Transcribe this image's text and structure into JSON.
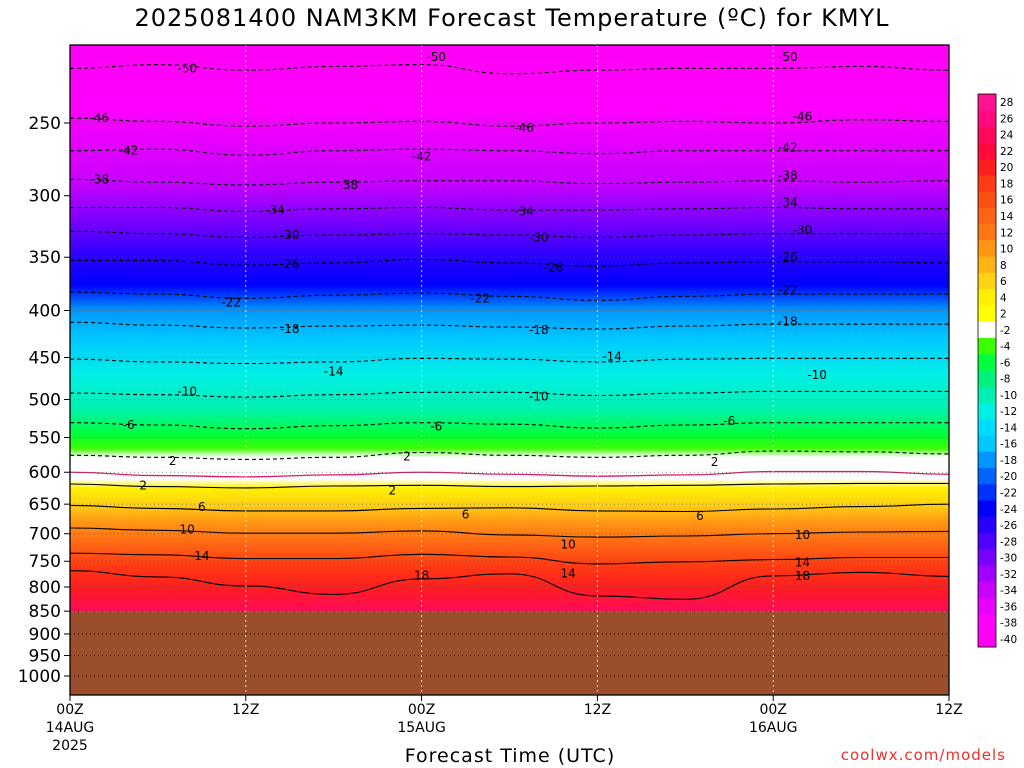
{
  "title": "2025081400 NAM3KM Forecast Temperature (ºC) for KMYL",
  "xlabel": "Forecast Time (UTC)",
  "credit": "coolwx.com/models",
  "colors": {
    "terrain": "#9a4e2b",
    "freezing_contour": "#e0186e",
    "credit": "#e8322e"
  },
  "chart_data": {
    "type": "heatmap",
    "title": "2025081400 NAM3KM Forecast Temperature (ºC) for KMYL",
    "xlabel": "Forecast Time (UTC)",
    "ylabel": "",
    "y_scale": "log pressure (hPa), inverted",
    "ylim": [
      1050,
      200
    ],
    "xlim": [
      0,
      60
    ],
    "grid": true,
    "surface_pressure": 850,
    "y_ticks": [
      250,
      300,
      350,
      400,
      450,
      500,
      550,
      600,
      650,
      700,
      750,
      800,
      850,
      900,
      950,
      1000
    ],
    "x_ticks": [
      {
        "hour": 0,
        "label": "00Z",
        "sub1": "14AUG",
        "sub2": "2025"
      },
      {
        "hour": 12,
        "label": "12Z",
        "sub1": "",
        "sub2": ""
      },
      {
        "hour": 24,
        "label": "00Z",
        "sub1": "15AUG",
        "sub2": ""
      },
      {
        "hour": 36,
        "label": "12Z",
        "sub1": "",
        "sub2": ""
      },
      {
        "hour": 48,
        "label": "00Z",
        "sub1": "16AUG",
        "sub2": ""
      },
      {
        "hour": 60,
        "label": "12Z",
        "sub1": "",
        "sub2": ""
      }
    ],
    "colorbar_levels": [
      28,
      26,
      24,
      22,
      20,
      18,
      16,
      14,
      12,
      10,
      8,
      6,
      4,
      2,
      -2,
      -4,
      -6,
      -8,
      -10,
      -12,
      -14,
      -16,
      -18,
      -20,
      -22,
      -24,
      -26,
      -28,
      -30,
      -32,
      -34,
      -36,
      -38,
      -40
    ],
    "colorbar_colors": [
      "#ff1493",
      "#ff0a80",
      "#ff0a5a",
      "#ff0a3c",
      "#ff1e1e",
      "#ff3a14",
      "#ff5014",
      "#ff6414",
      "#ff7814",
      "#ff9614",
      "#ffb414",
      "#ffd214",
      "#fff000",
      "#ffff00",
      "#ffffff",
      "#3cff00",
      "#00ff3c",
      "#00f07a",
      "#00f0b4",
      "#00f0e6",
      "#00dcff",
      "#00c8ff",
      "#0096ff",
      "#0064ff",
      "#0032ff",
      "#0000ff",
      "#2800ff",
      "#5000ff",
      "#7800ff",
      "#a000ff",
      "#c800ff",
      "#e600ff",
      "#ff00ff",
      "#ff00f5"
    ],
    "series": [
      {
        "name": "-50",
        "pressure": [
          218,
          216,
          219,
          217,
          216,
          221,
          219,
          218,
          218,
          217,
          219
        ]
      },
      {
        "name": "-46",
        "pressure": [
          247,
          249,
          252,
          250,
          249,
          252,
          250,
          249,
          250,
          248,
          249
        ]
      },
      {
        "name": "-42",
        "pressure": [
          268,
          267,
          271,
          268,
          267,
          268,
          270,
          268,
          268,
          268,
          268
        ]
      },
      {
        "name": "-38",
        "pressure": [
          288,
          290,
          292,
          290,
          289,
          289,
          291,
          290,
          289,
          290,
          289
        ]
      },
      {
        "name": "-34",
        "pressure": [
          309,
          309,
          312,
          310,
          309,
          311,
          311,
          310,
          309,
          310,
          310
        ]
      },
      {
        "name": "-30",
        "pressure": [
          328,
          330,
          333,
          331,
          330,
          331,
          333,
          331,
          330,
          330,
          330
        ]
      },
      {
        "name": "-26",
        "pressure": [
          353,
          353,
          357,
          355,
          352,
          355,
          358,
          355,
          354,
          354,
          355
        ]
      },
      {
        "name": "-22",
        "pressure": [
          382,
          384,
          388,
          385,
          383,
          386,
          390,
          386,
          384,
          384,
          384
        ]
      },
      {
        "name": "-18",
        "pressure": [
          412,
          415,
          418,
          416,
          415,
          417,
          419,
          416,
          414,
          414,
          414
        ]
      },
      {
        "name": "-14",
        "pressure": [
          452,
          455,
          457,
          455,
          451,
          452,
          455,
          452,
          451,
          451,
          451
        ]
      },
      {
        "name": "-10",
        "pressure": [
          492,
          494,
          497,
          494,
          491,
          491,
          495,
          492,
          490,
          490,
          490
        ]
      },
      {
        "name": "-6",
        "pressure": [
          530,
          533,
          538,
          534,
          530,
          532,
          537,
          533,
          530,
          530,
          530
        ]
      },
      {
        "name": "-2",
        "pressure": [
          575,
          578,
          581,
          578,
          571,
          575,
          578,
          575,
          569,
          570,
          573
        ]
      },
      {
        "name": "2",
        "pressure": [
          618,
          622,
          624,
          621,
          620,
          622,
          621,
          620,
          618,
          617,
          617
        ]
      },
      {
        "name": "6",
        "pressure": [
          652,
          657,
          661,
          661,
          657,
          656,
          661,
          662,
          658,
          654,
          650
        ]
      },
      {
        "name": "10",
        "pressure": [
          690,
          694,
          699,
          699,
          695,
          702,
          706,
          704,
          700,
          697,
          696
        ]
      },
      {
        "name": "14",
        "pressure": [
          735,
          738,
          745,
          745,
          737,
          742,
          755,
          751,
          747,
          743,
          743
        ]
      },
      {
        "name": "18",
        "pressure": [
          768,
          780,
          798,
          815,
          784,
          774,
          818,
          825,
          778,
          771,
          779
        ]
      }
    ],
    "contour_labels": [
      {
        "value": "-50",
        "hour": 8,
        "pressure": 218
      },
      {
        "value": "-50",
        "hour": 25,
        "pressure": 212
      },
      {
        "value": "-50",
        "hour": 49,
        "pressure": 212
      },
      {
        "value": "-46",
        "hour": 2,
        "pressure": 247
      },
      {
        "value": "-46",
        "hour": 31,
        "pressure": 253
      },
      {
        "value": "-46",
        "hour": 50,
        "pressure": 246
      },
      {
        "value": "-42",
        "hour": 4,
        "pressure": 268
      },
      {
        "value": "-42",
        "hour": 24,
        "pressure": 272
      },
      {
        "value": "-42",
        "hour": 49,
        "pressure": 266
      },
      {
        "value": "-38",
        "hour": 2,
        "pressure": 288
      },
      {
        "value": "-38",
        "hour": 19,
        "pressure": 292
      },
      {
        "value": "-38",
        "hour": 49,
        "pressure": 285
      },
      {
        "value": "-34",
        "hour": 14,
        "pressure": 311
      },
      {
        "value": "-34",
        "hour": 31,
        "pressure": 312
      },
      {
        "value": "-34",
        "hour": 49,
        "pressure": 305
      },
      {
        "value": "-30",
        "hour": 15,
        "pressure": 331
      },
      {
        "value": "-30",
        "hour": 32,
        "pressure": 333
      },
      {
        "value": "-30",
        "hour": 50,
        "pressure": 327
      },
      {
        "value": "-26",
        "hour": 15,
        "pressure": 356
      },
      {
        "value": "-26",
        "hour": 33,
        "pressure": 359
      },
      {
        "value": "-26",
        "hour": 49,
        "pressure": 350
      },
      {
        "value": "-22",
        "hour": 11,
        "pressure": 392
      },
      {
        "value": "-22",
        "hour": 28,
        "pressure": 388
      },
      {
        "value": "-22",
        "hour": 49,
        "pressure": 380
      },
      {
        "value": "-18",
        "hour": 15,
        "pressure": 419
      },
      {
        "value": "-18",
        "hour": 32,
        "pressure": 420
      },
      {
        "value": "-18",
        "hour": 49,
        "pressure": 411
      },
      {
        "value": "-14",
        "hour": 18,
        "pressure": 466
      },
      {
        "value": "-14",
        "hour": 37,
        "pressure": 449
      },
      {
        "value": "-10",
        "hour": 8,
        "pressure": 490
      },
      {
        "value": "-10",
        "hour": 32,
        "pressure": 496
      },
      {
        "value": "-10",
        "hour": 51,
        "pressure": 470
      },
      {
        "value": "-6",
        "hour": 4,
        "pressure": 533
      },
      {
        "value": "-6",
        "hour": 25,
        "pressure": 535
      },
      {
        "value": "-6",
        "hour": 45,
        "pressure": 528
      },
      {
        "value": "2",
        "hour": 7,
        "pressure": 583
      },
      {
        "value": "2",
        "hour": 23,
        "pressure": 577
      },
      {
        "value": "2",
        "hour": 44,
        "pressure": 585
      },
      {
        "value": "2",
        "hour": 5,
        "pressure": 620
      },
      {
        "value": "2",
        "hour": 22,
        "pressure": 628
      },
      {
        "value": "6",
        "hour": 9,
        "pressure": 655
      },
      {
        "value": "6",
        "hour": 27,
        "pressure": 667
      },
      {
        "value": "6",
        "hour": 43,
        "pressure": 670
      },
      {
        "value": "10",
        "hour": 8,
        "pressure": 693
      },
      {
        "value": "10",
        "hour": 34,
        "pressure": 719
      },
      {
        "value": "10",
        "hour": 50,
        "pressure": 702
      },
      {
        "value": "14",
        "hour": 9,
        "pressure": 740
      },
      {
        "value": "14",
        "hour": 34,
        "pressure": 773
      },
      {
        "value": "14",
        "hour": 50,
        "pressure": 752
      },
      {
        "value": "18",
        "hour": 24,
        "pressure": 777
      },
      {
        "value": "18",
        "hour": 50,
        "pressure": 778
      }
    ]
  }
}
